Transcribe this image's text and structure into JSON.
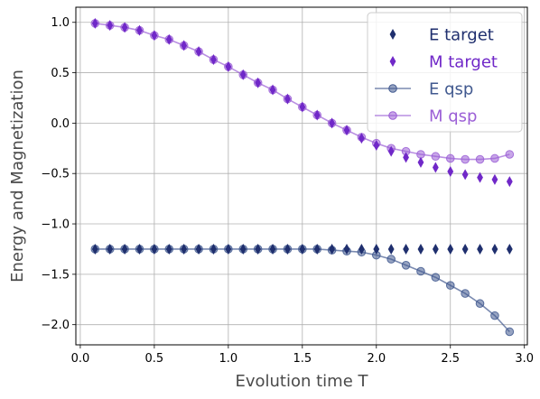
{
  "chart_data": {
    "type": "scatter",
    "xlabel": "Evolution time T",
    "ylabel": "Energy and Magnetization",
    "xlim": [
      -0.03,
      3.02
    ],
    "ylim": [
      -2.2,
      1.15
    ],
    "xticks": [
      0.0,
      0.5,
      1.0,
      1.5,
      2.0,
      2.5,
      3.0
    ],
    "xtick_labels": [
      "0.0",
      "0.5",
      "1.0",
      "1.5",
      "2.0",
      "2.5",
      "3.0"
    ],
    "yticks": [
      1.0,
      0.5,
      0.0,
      -0.5,
      -1.0,
      -1.5,
      -2.0
    ],
    "ytick_labels": [
      "1.0",
      "0.5",
      "0.0",
      "−0.5",
      "−1.0",
      "−1.5",
      "−2.0"
    ],
    "grid": true,
    "legend_position": "top-right",
    "x": [
      0.1,
      0.2,
      0.3,
      0.4,
      0.5,
      0.6,
      0.7,
      0.8,
      0.9,
      1.0,
      1.1,
      1.2,
      1.3,
      1.4,
      1.5,
      1.6,
      1.7,
      1.8,
      1.9,
      2.0,
      2.1,
      2.2,
      2.3,
      2.4,
      2.5,
      2.6,
      2.7,
      2.8,
      2.9
    ],
    "series": [
      {
        "name": "E target",
        "kind": "markers",
        "marker": "thin_diamond",
        "color": "#1f2f6e",
        "values": [
          -1.25,
          -1.25,
          -1.25,
          -1.25,
          -1.25,
          -1.25,
          -1.25,
          -1.25,
          -1.25,
          -1.25,
          -1.25,
          -1.25,
          -1.25,
          -1.25,
          -1.25,
          -1.25,
          -1.25,
          -1.25,
          -1.25,
          -1.25,
          -1.25,
          -1.25,
          -1.25,
          -1.25,
          -1.25,
          -1.25,
          -1.25,
          -1.25,
          -1.25
        ]
      },
      {
        "name": "M target",
        "kind": "markers",
        "marker": "thin_diamond",
        "color": "#7028c8",
        "values": [
          0.99,
          0.97,
          0.95,
          0.92,
          0.87,
          0.83,
          0.77,
          0.71,
          0.63,
          0.56,
          0.48,
          0.4,
          0.33,
          0.24,
          0.16,
          0.08,
          0.0,
          -0.07,
          -0.15,
          -0.22,
          -0.28,
          -0.34,
          -0.39,
          -0.44,
          -0.48,
          -0.51,
          -0.54,
          -0.56,
          -0.58
        ]
      },
      {
        "name": "E qsp",
        "kind": "line+markers",
        "marker": "circle",
        "color": "#41598f",
        "values": [
          -1.25,
          -1.25,
          -1.25,
          -1.25,
          -1.25,
          -1.25,
          -1.25,
          -1.25,
          -1.25,
          -1.25,
          -1.25,
          -1.25,
          -1.25,
          -1.25,
          -1.25,
          -1.25,
          -1.26,
          -1.27,
          -1.28,
          -1.31,
          -1.35,
          -1.41,
          -1.47,
          -1.53,
          -1.61,
          -1.69,
          -1.79,
          -1.91,
          -2.07
        ]
      },
      {
        "name": "M qsp",
        "kind": "line+markers",
        "marker": "circle",
        "color": "#9b5fd6",
        "values": [
          0.99,
          0.97,
          0.95,
          0.92,
          0.87,
          0.83,
          0.77,
          0.71,
          0.63,
          0.56,
          0.48,
          0.4,
          0.33,
          0.24,
          0.16,
          0.08,
          0.0,
          -0.07,
          -0.14,
          -0.2,
          -0.25,
          -0.28,
          -0.31,
          -0.33,
          -0.35,
          -0.36,
          -0.36,
          -0.35,
          -0.31
        ]
      }
    ]
  }
}
